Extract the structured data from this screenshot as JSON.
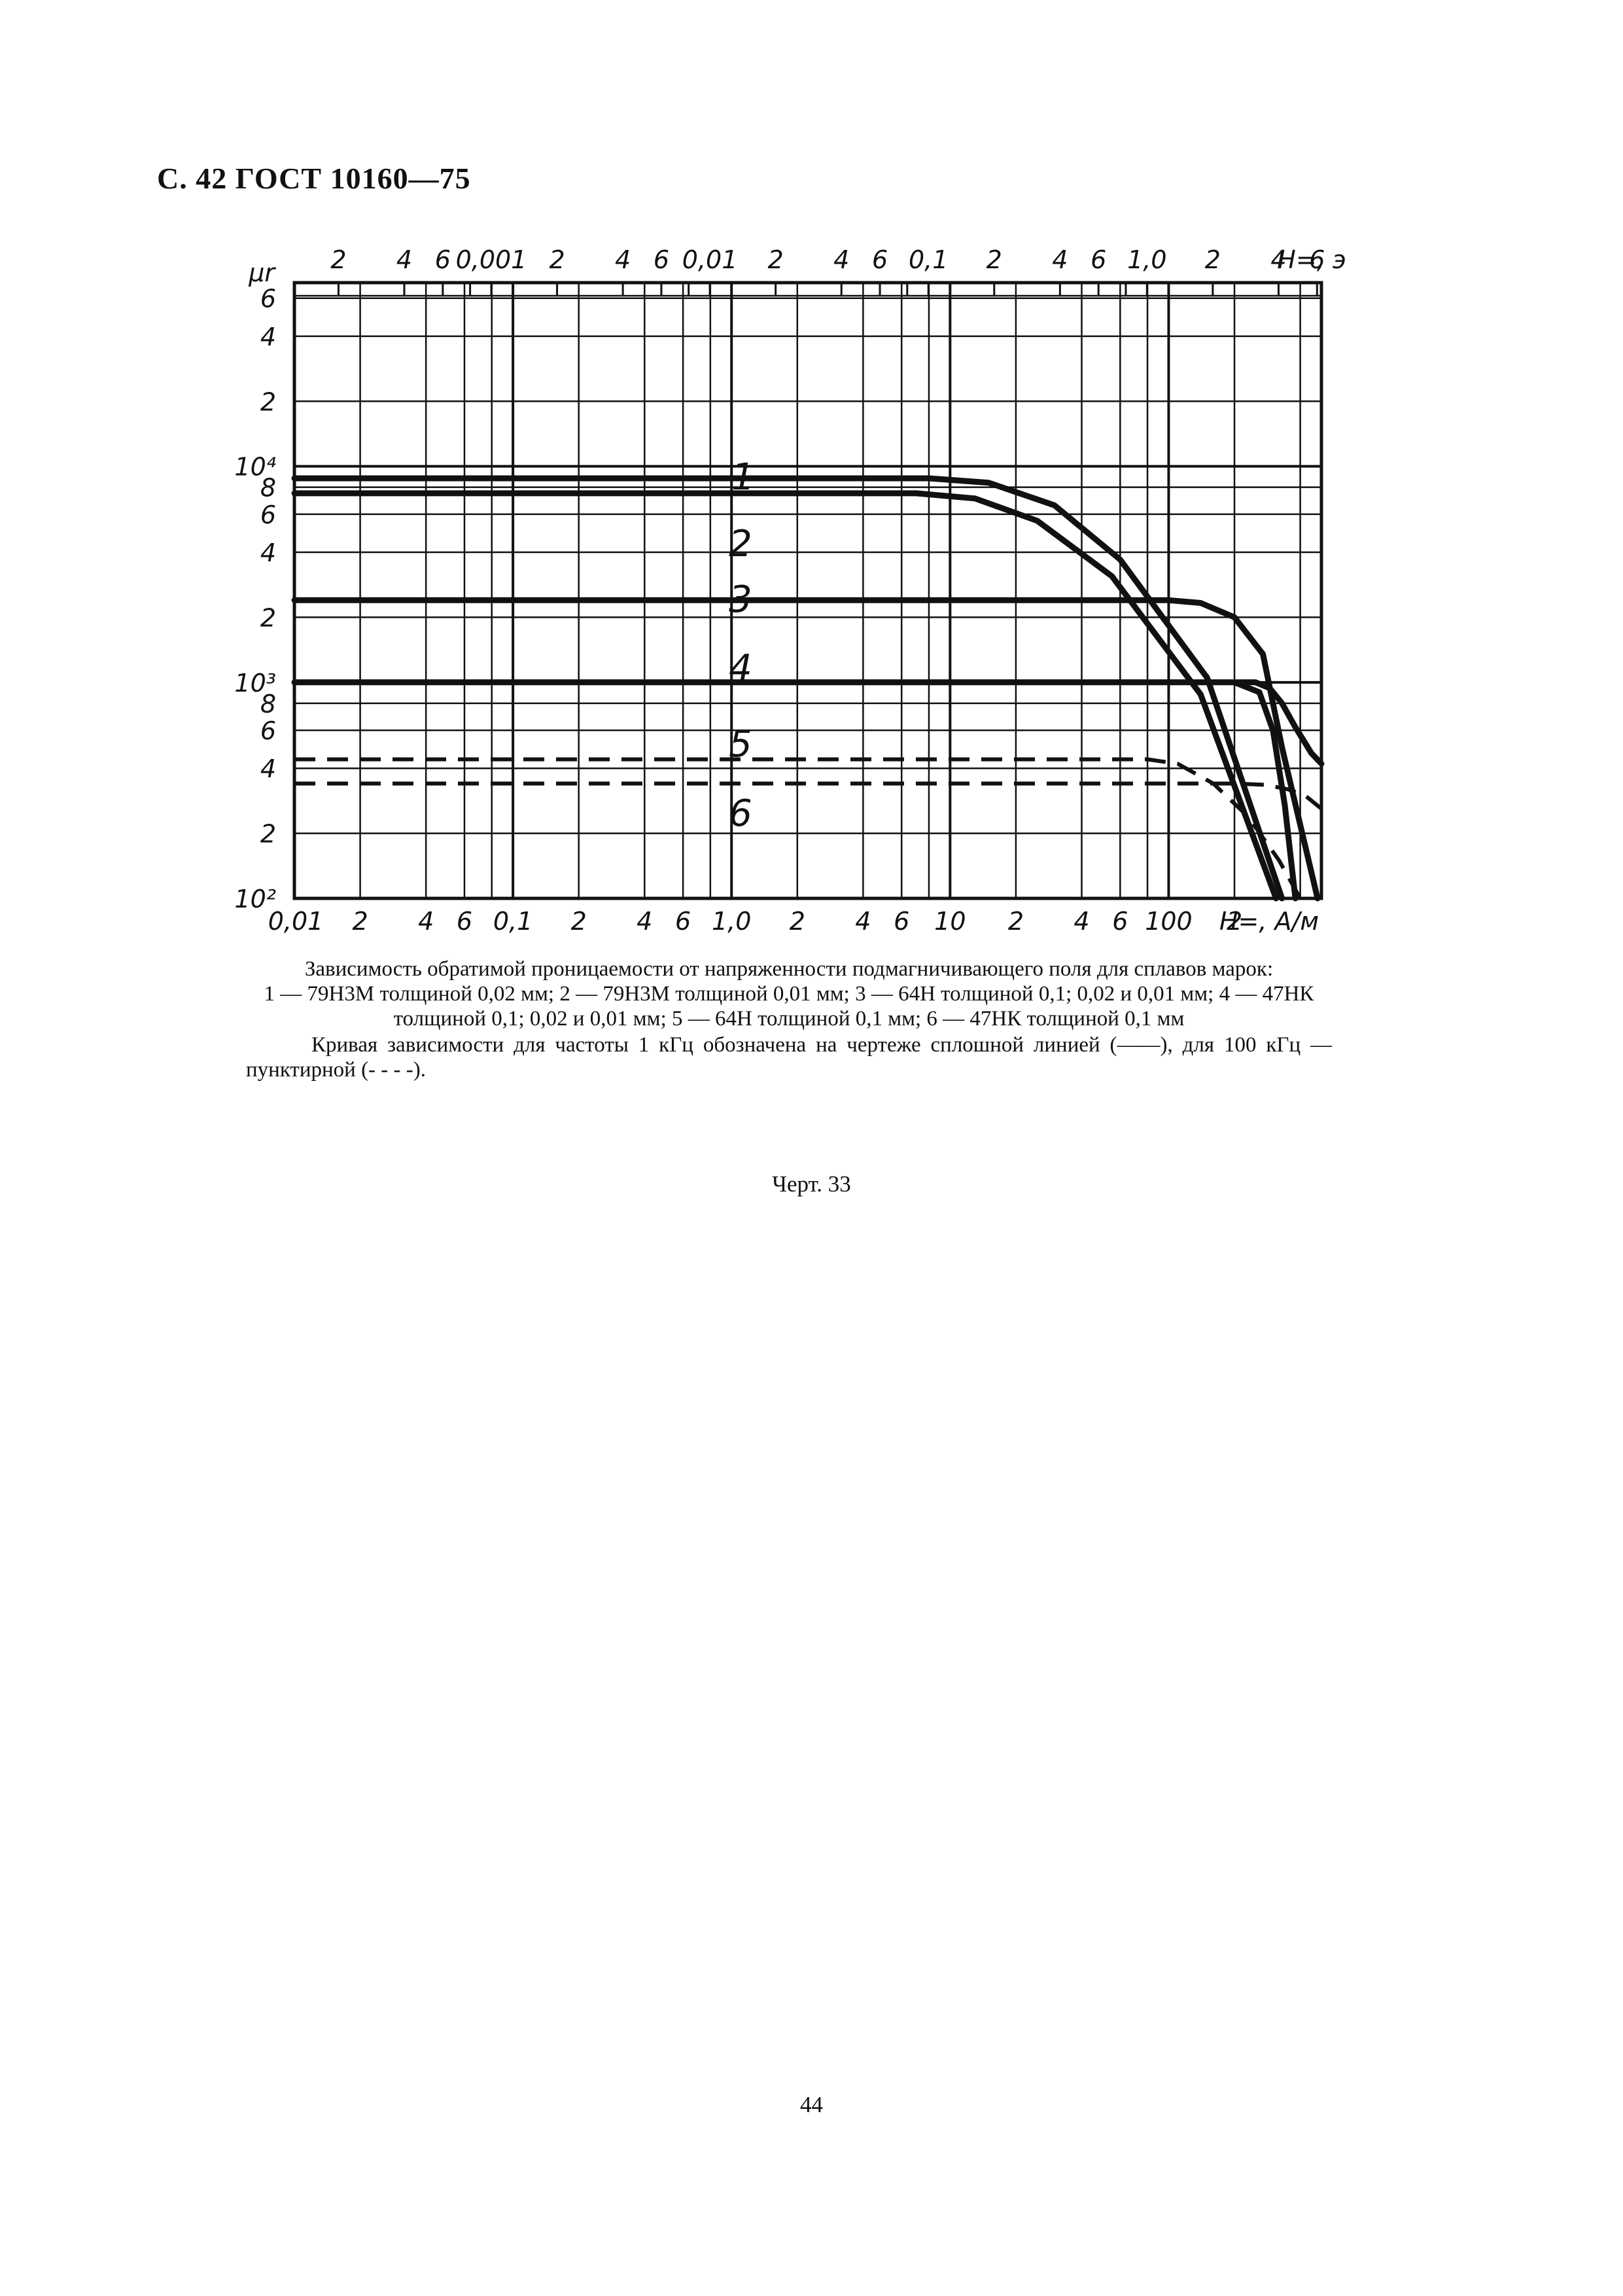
{
  "header": "С. 42 ГОСТ 10160—75",
  "caption": {
    "title": "Зависимость обратимой проницаемости от напряженности подмагничивающего поля для сплавов марок:",
    "legend_text": "1 — 79Н3М толщиной 0,02 мм; 2 — 79Н3М толщиной 0,01 мм; 3 — 64Н толщиной 0,1; 0,02 и 0,01 мм; 4 — 47НК толщиной 0,1; 0,02 и 0,01 мм; 5 — 64Н толщиной 0,1 мм; 6 — 47НК толщиной 0,1 мм",
    "note": "Кривая зависимости для частоты 1 кГц обозначена на чертеже сплошной линией (——), для 100 кГц — пунктирной (- - - -)."
  },
  "chart_number": "Черт. 33",
  "page_number": "44",
  "chart_data": {
    "type": "line",
    "title": "",
    "xlabel": "H=, А/м",
    "x2label": "H=, э",
    "ylabel": "μr",
    "xscale": "log",
    "yscale": "log",
    "xlim": [
      0.01,
      500
    ],
    "ylim": [
      100,
      10000
    ],
    "x_tick_labels": [
      "0,01",
      "2",
      "4",
      "6",
      "0,1",
      "2",
      "4",
      "6",
      "1,0",
      "2",
      "4",
      "6",
      "10",
      "2",
      "4",
      "6",
      "100",
      "2"
    ],
    "x2_tick_labels": [
      "2",
      "4",
      "6",
      "0,001",
      "2",
      "4",
      "6",
      "0,01",
      "2",
      "4",
      "6",
      "0,1",
      "2",
      "4",
      "6",
      "1,0",
      "2",
      "4",
      "6"
    ],
    "y_tick_labels": [
      "10²",
      "2",
      "4",
      "6",
      "8",
      "10³",
      "2",
      "4",
      "6",
      "8",
      "10⁴",
      "2",
      "4",
      "6"
    ],
    "grid": true,
    "series": [
      {
        "name": "1",
        "style": "solid",
        "x": [
          0.01,
          8,
          15,
          30,
          60,
          150,
          330
        ],
        "y": [
          8800,
          8800,
          8400,
          6600,
          3700,
          1050,
          100
        ]
      },
      {
        "name": "2",
        "style": "solid",
        "x": [
          0.01,
          7,
          13,
          25,
          55,
          140,
          310
        ],
        "y": [
          7500,
          7500,
          7100,
          5600,
          3100,
          880,
          100
        ]
      },
      {
        "name": "3",
        "style": "solid",
        "x": [
          0.01,
          100,
          140,
          200,
          270,
          330,
          480
        ],
        "y": [
          2400,
          2400,
          2330,
          2000,
          1350,
          500,
          100
        ]
      },
      {
        "name": "4",
        "style": "solid",
        "x": [
          0.01,
          250,
          290,
          330,
          380,
          450,
          500
        ],
        "y": [
          1000,
          1000,
          940,
          800,
          620,
          470,
          420
        ]
      },
      {
        "name": "5",
        "style": "dashed",
        "x": [
          0.01,
          80,
          110,
          160,
          230,
          320,
          400
        ],
        "y": [
          440,
          440,
          420,
          340,
          240,
          150,
          100
        ]
      },
      {
        "name": "6",
        "style": "dashed",
        "x": [
          0.01,
          200,
          280,
          350,
          420,
          500
        ],
        "y": [
          340,
          340,
          335,
          320,
          300,
          260
        ]
      },
      {
        "name": "",
        "style": "solid",
        "x": [
          200,
          260,
          300,
          340,
          380
        ],
        "y": [
          1000,
          900,
          600,
          270,
          100
        ]
      }
    ]
  }
}
